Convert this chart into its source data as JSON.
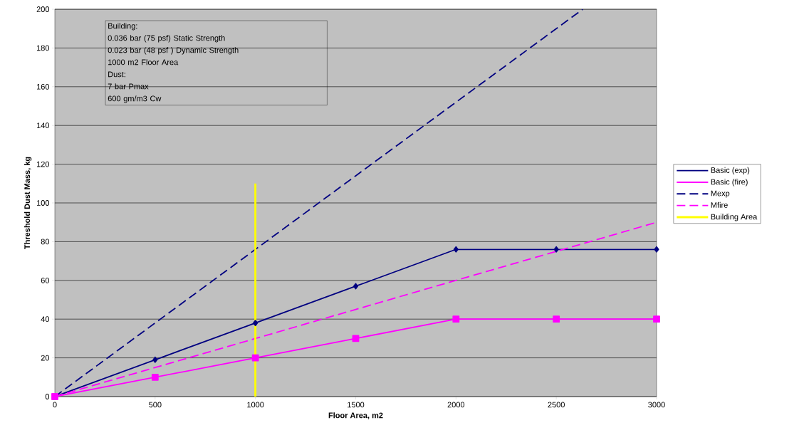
{
  "chart_data": {
    "type": "line",
    "xlabel": "Floor Area, m2",
    "ylabel": "Threshold Dust Mass, kg",
    "x": [
      0,
      500,
      1000,
      1500,
      2000,
      2500,
      3000
    ],
    "series": [
      {
        "name": "Basic (exp)",
        "color": "#000080",
        "marker": "diamond",
        "line_style": "solid",
        "values": [
          0,
          19,
          38,
          57,
          76,
          76,
          76
        ]
      },
      {
        "name": "Basic (fire)",
        "color": "#ff00ff",
        "marker": "square",
        "line_style": "solid",
        "values": [
          0,
          10,
          20,
          30,
          40,
          40,
          40
        ]
      },
      {
        "name": "Mexp",
        "color": "#000080",
        "marker": "none",
        "line_style": "dashed",
        "x": [
          0,
          500,
          1000,
          1500,
          2000,
          2500,
          2632
        ],
        "values": [
          0,
          38,
          76,
          114,
          152,
          190,
          200
        ]
      },
      {
        "name": "Mfire",
        "color": "#ff00ff",
        "marker": "none",
        "line_style": "dashed",
        "values": [
          0,
          15,
          30,
          45,
          60,
          75,
          90
        ]
      },
      {
        "name": "Building Area",
        "color": "#ffff00",
        "marker": "none",
        "line_style": "solid",
        "x": [
          1000,
          1000
        ],
        "values": [
          0,
          110
        ]
      }
    ],
    "xlim": [
      0,
      3000
    ],
    "ylim": [
      0,
      200
    ],
    "xticks": [
      0,
      500,
      1000,
      1500,
      2000,
      2500,
      3000
    ],
    "yticks": [
      0,
      20,
      40,
      60,
      80,
      100,
      120,
      140,
      160,
      180,
      200
    ],
    "grid": "y",
    "legend": "right",
    "annotations": [
      "Building:",
      "0.036 bar (75 psf) Static Strength",
      "0.023 bar (48 psf ) Dynamic Strength",
      "1000 m2 Floor Area",
      "Dust:",
      "7 bar Pmax",
      "600 gm/m3 Cw"
    ]
  }
}
